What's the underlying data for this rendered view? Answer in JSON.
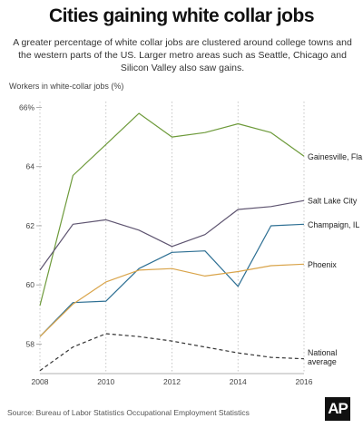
{
  "header": {
    "title": "Cities gaining white collar jobs",
    "subtitle": "A greater percentage of white collar jobs are clustered around college towns and the western parts of the US. Larger metro areas such as Seattle, Chicago and Silicon Valley also saw gains."
  },
  "footer": {
    "source": "Source: Bureau of Labor Statistics Occupational Employment Statistics",
    "logo_text": "AP"
  },
  "chart_data": {
    "type": "line",
    "title": "Cities gaining white collar jobs",
    "xlabel": "",
    "ylabel": "Workers in white-collar jobs (%)",
    "x": [
      2008,
      2009,
      2010,
      2011,
      2012,
      2013,
      2014,
      2015,
      2016
    ],
    "xticks": [
      2008,
      2010,
      2012,
      2014,
      2016
    ],
    "xlim": [
      2008,
      2016
    ],
    "ylim": [
      57,
      66.2
    ],
    "yticks": [
      58,
      60,
      62,
      64,
      66
    ],
    "ytick_labels": [
      "58",
      "60",
      "62",
      "64",
      "66%"
    ],
    "grid": "vertical dotted",
    "legend": "direct labels at right end of lines",
    "series": [
      {
        "name": "Gainesville, Fla.",
        "color": "#6d9a3a",
        "dash": false,
        "values": [
          59.3,
          63.7,
          64.75,
          65.8,
          65.0,
          65.15,
          65.45,
          65.15,
          64.35
        ]
      },
      {
        "name": "Salt Lake City",
        "color": "#5e5470",
        "dash": false,
        "values": [
          60.5,
          62.05,
          62.2,
          61.85,
          61.3,
          61.7,
          62.55,
          62.65,
          62.85
        ]
      },
      {
        "name": "Champaign, IL",
        "color": "#2d6f93",
        "dash": false,
        "values": [
          58.25,
          59.4,
          59.45,
          60.55,
          61.1,
          61.15,
          59.95,
          62.0,
          62.05
        ]
      },
      {
        "name": "Phoenix",
        "color": "#d9a44a",
        "dash": false,
        "values": [
          58.25,
          59.35,
          60.1,
          60.5,
          60.55,
          60.3,
          60.45,
          60.65,
          60.7
        ]
      },
      {
        "name": "National average",
        "label_lines": [
          "National",
          "average"
        ],
        "color": "#333333",
        "dash": true,
        "values": [
          57.1,
          57.9,
          58.35,
          58.25,
          58.1,
          57.9,
          57.7,
          57.55,
          57.5
        ]
      }
    ]
  }
}
